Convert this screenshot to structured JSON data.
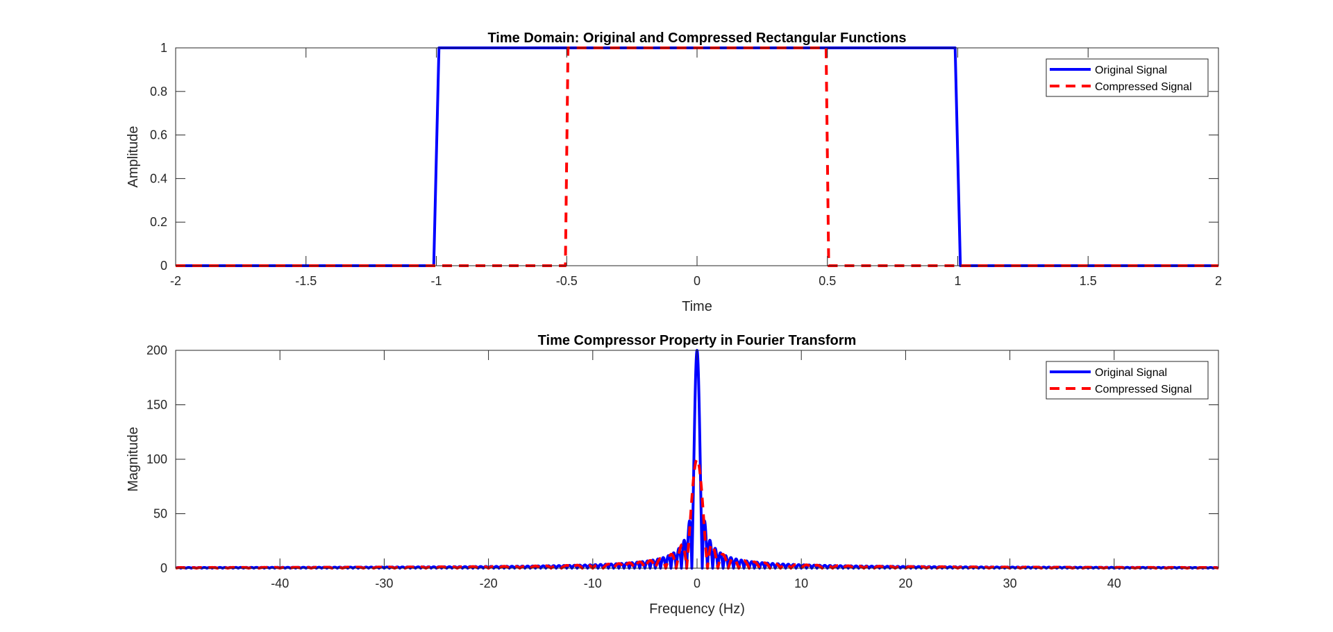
{
  "chart_data": [
    {
      "type": "line",
      "title": "Time Domain: Original and Compressed Rectangular Functions",
      "xlabel": "Time",
      "ylabel": "Amplitude",
      "xlim": [
        -2,
        2
      ],
      "ylim": [
        0,
        1
      ],
      "xticks": [
        -2,
        -1.5,
        -1,
        -0.5,
        0,
        0.5,
        1,
        1.5,
        2
      ],
      "yticks": [
        0,
        0.2,
        0.4,
        0.6,
        0.8,
        1
      ],
      "xtick_labels": [
        "-2",
        "-1.5",
        "-1",
        "-0.5",
        "0",
        "0.5",
        "1",
        "1.5",
        "2"
      ],
      "ytick_labels": [
        "0",
        "0.2",
        "0.4",
        "0.6",
        "0.8",
        "1"
      ],
      "grid": false,
      "legend_position": "top-right",
      "series": [
        {
          "name": "Original Signal",
          "color": "#0000ff",
          "style": "solid",
          "x": [
            -2,
            -1.01,
            -0.99,
            0.99,
            1.01,
            2
          ],
          "y": [
            0,
            0,
            1,
            1,
            0,
            0
          ]
        },
        {
          "name": "Compressed Signal",
          "color": "#ff0000",
          "style": "dashed",
          "x": [
            -2,
            -0.505,
            -0.495,
            0.495,
            0.505,
            2
          ],
          "y": [
            0,
            0,
            1,
            1,
            0,
            0
          ]
        }
      ]
    },
    {
      "type": "line",
      "title": "Time Compressor Property in Fourier Transform",
      "xlabel": "Frequency (Hz)",
      "ylabel": "Magnitude",
      "xlim": [
        -50,
        50
      ],
      "ylim": [
        0,
        200
      ],
      "xticks": [
        -40,
        -30,
        -20,
        -10,
        0,
        10,
        20,
        30,
        40
      ],
      "yticks": [
        0,
        50,
        100,
        150,
        200
      ],
      "xtick_labels": [
        "-40",
        "-30",
        "-20",
        "-10",
        "0",
        "10",
        "20",
        "30",
        "40"
      ],
      "ytick_labels": [
        "0",
        "50",
        "100",
        "150",
        "200"
      ],
      "grid": false,
      "legend_position": "top-right",
      "series": [
        {
          "name": "Original Signal",
          "color": "#0000ff",
          "style": "solid",
          "function": "abs_sinc",
          "peak": 200,
          "first_zero_hz": 0.5
        },
        {
          "name": "Compressed Signal",
          "color": "#ff0000",
          "style": "dashed",
          "function": "abs_sinc",
          "peak": 100,
          "first_zero_hz": 1
        }
      ]
    }
  ]
}
